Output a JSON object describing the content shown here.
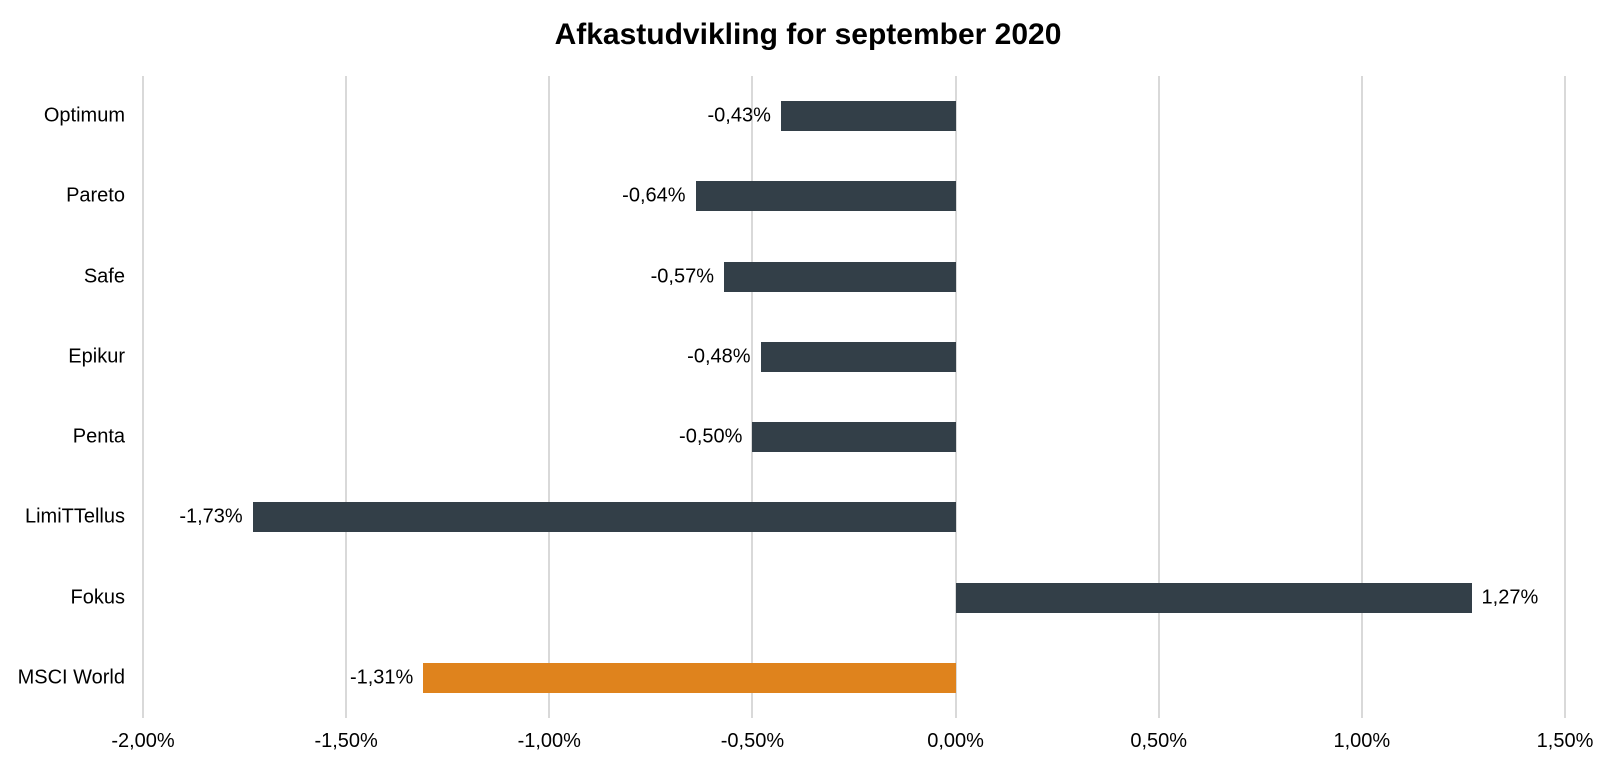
{
  "chart_data": {
    "type": "bar",
    "orientation": "horizontal",
    "title": "Afkastudvikling for september 2020",
    "categories": [
      "Optimum",
      "Pareto",
      "Safe",
      "Epikur",
      "Penta",
      "LimiTTellus",
      "Fokus",
      "MSCI World"
    ],
    "values": [
      -0.43,
      -0.64,
      -0.57,
      -0.48,
      -0.5,
      -1.73,
      1.27,
      -1.31
    ],
    "value_labels": [
      "-0,43%",
      "-0,64%",
      "-0,57%",
      "-0,48%",
      "-0,50%",
      "-1,73%",
      "1,27%",
      "-1,31%"
    ],
    "bar_colors": [
      "#333F48",
      "#333F48",
      "#333F48",
      "#333F48",
      "#333F48",
      "#333F48",
      "#333F48",
      "#DF831D"
    ],
    "xlabel": "",
    "ylabel": "",
    "xlim": [
      -2.0,
      1.5
    ],
    "x_ticks": [
      -2.0,
      -1.5,
      -1.0,
      -0.5,
      0.0,
      0.5,
      1.0,
      1.5
    ],
    "x_tick_labels": [
      "-2,00%",
      "-1,50%",
      "-1,00%",
      "-0,50%",
      "0,00%",
      "0,50%",
      "1,00%",
      "1,50%"
    ],
    "grid": "vertical gridlines on, no axis lines",
    "legend": "none",
    "colors": {
      "bar_default": "#333F48",
      "bar_highlight": "#DF831D",
      "gridline": "#D9D9D9",
      "text": "#000000",
      "background": "#FFFFFF"
    }
  }
}
